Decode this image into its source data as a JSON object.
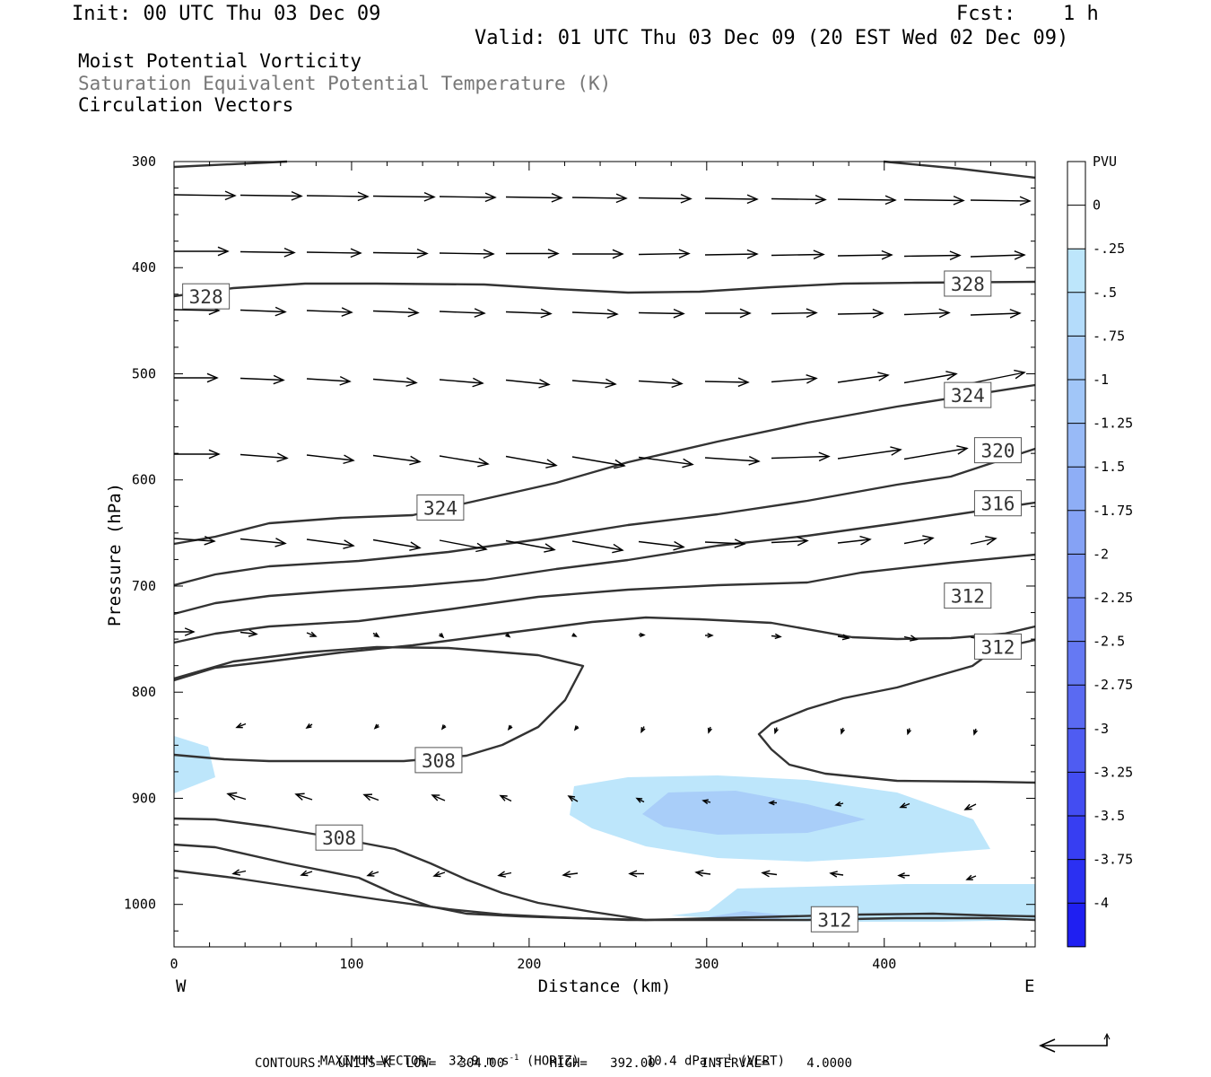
{
  "header": {
    "init": "Init: 00 UTC Thu 03 Dec 09",
    "fcst_label": "Fcst:",
    "fcst_value": "1 h",
    "valid": "Valid: 01 UTC Thu 03 Dec 09 (20 EST Wed 02 Dec 09)"
  },
  "titles": {
    "line1": "Moist Potential Vorticity",
    "line2": "Saturation Equivalent Potential Temperature (K)",
    "line3": "Circulation Vectors"
  },
  "footer": {
    "max_vector_prefix": "MAXIMUM VECTOR:  32.9 m s",
    "exp1": "-1",
    "horiz": " (HORIZ)",
    "vert_prefix": "10.4 dPa s",
    "exp2": "-1",
    "vert": " (VERT)",
    "contours": "CONTOURS:  UNITS=K  LOW=   304.00      HIGH=   392.00      INTERVAL=     4.0000"
  },
  "chart_data": {
    "type": "contour-cross-section",
    "xlabel": "Distance (km)",
    "ylabel": "Pressure (hPa)",
    "x_end_labels": [
      "W",
      "E"
    ],
    "xlim": [
      0,
      485
    ],
    "ylim": [
      1040,
      300
    ],
    "x_ticks": [
      0,
      100,
      200,
      300,
      400
    ],
    "y_ticks": [
      300,
      400,
      500,
      600,
      700,
      800,
      900,
      1000
    ],
    "colorbar": {
      "unit": "PVU",
      "labels": [
        "0",
        "-.25",
        "-.5",
        "-.75",
        "-1",
        "-1.25",
        "-1.5",
        "-1.75",
        "-2",
        "-2.25",
        "-2.5",
        "-2.75",
        "-3",
        "-3.25",
        "-3.5",
        "-3.75",
        "-4"
      ],
      "colors": [
        "#ffffff",
        "#ffffff",
        "#bde6fb",
        "#b4dcfb",
        "#a9cef9",
        "#a1c6f8",
        "#98baf7",
        "#8eaef6",
        "#85a2f5",
        "#7b95f4",
        "#7087f3",
        "#6579f3",
        "#5a6af2",
        "#4f5cf2",
        "#434df2",
        "#373ef2",
        "#2b30f2",
        "#1f1ff2"
      ]
    },
    "contour_labels": [
      {
        "value": "328",
        "x": 18,
        "p": 427
      },
      {
        "value": "328",
        "x": 447,
        "p": 415
      },
      {
        "value": "324",
        "x": 447,
        "p": 520
      },
      {
        "value": "320",
        "x": 464,
        "p": 572
      },
      {
        "value": "324",
        "x": 150,
        "p": 626
      },
      {
        "value": "316",
        "x": 464,
        "p": 622
      },
      {
        "value": "312",
        "x": 447,
        "p": 709
      },
      {
        "value": "312",
        "x": 464,
        "p": 757
      },
      {
        "value": "308",
        "x": 149,
        "p": 864
      },
      {
        "value": "308",
        "x": 93,
        "p": 937
      },
      {
        "value": "312",
        "x": 372,
        "p": 1014
      }
    ],
    "vector_legend": "reference arrow"
  }
}
